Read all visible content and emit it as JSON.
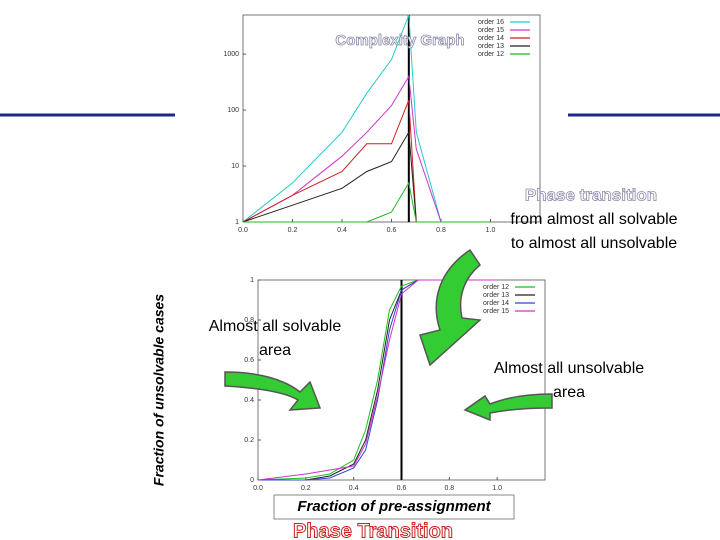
{
  "slide": {
    "transition_title": "Phase transition",
    "transition_detail_1": "from almost all solvable",
    "transition_detail_2": "to almost all unsolvable",
    "solvable_1": "Almost all solvable",
    "solvable_2": "area",
    "unsolvable_1": "Almost all unsolvable",
    "unsolvable_2": "area",
    "footer": "Phase Transition"
  },
  "chart_data": [
    {
      "type": "line",
      "title": "Complexity Graph",
      "log_y": true,
      "x": [
        0,
        0.2,
        0.4,
        0.5,
        0.6,
        0.67,
        0.7,
        0.8,
        1.0
      ],
      "xlim": [
        0,
        1.2
      ],
      "xticks": [
        {
          "value": 0,
          "label": "0.0"
        },
        0.2,
        0.4,
        0.6,
        0.8,
        {
          "value": 1,
          "label": "1.0"
        }
      ],
      "ylim": [
        1,
        5000
      ],
      "yticks": [
        1,
        10,
        100,
        1000
      ],
      "vline": 0.67,
      "legend": "top-right",
      "series": [
        {
          "name": "order 16",
          "color": "#22cccc",
          "values": [
            1,
            5,
            40,
            200,
            800,
            5000,
            40,
            1,
            1
          ]
        },
        {
          "name": "order 15",
          "color": "#cc33cc",
          "values": [
            1,
            3,
            15,
            40,
            120,
            400,
            20,
            1,
            1
          ]
        },
        {
          "name": "order 14",
          "color": "#cc2222",
          "values": [
            1,
            3,
            8,
            25,
            25,
            150,
            1,
            1,
            1
          ]
        },
        {
          "name": "order 13",
          "color": "#222222",
          "values": [
            1,
            2,
            4,
            8,
            12,
            40,
            1,
            1,
            1
          ]
        },
        {
          "name": "order 12",
          "color": "#22bb22",
          "values": [
            1,
            1,
            1,
            1,
            1.5,
            5,
            1,
            1,
            1
          ]
        }
      ]
    },
    {
      "type": "line",
      "x_label": "Fraction of pre-assignment",
      "y_label": "Fraction of unsolvable cases",
      "log_y": false,
      "x": [
        0,
        0.2,
        0.3,
        0.4,
        0.45,
        0.5,
        0.55,
        0.6,
        0.67,
        0.7,
        0.8,
        1.0
      ],
      "xlim": [
        0,
        1.2
      ],
      "xticks": [
        {
          "value": 0,
          "label": "0.0"
        },
        0.2,
        0.4,
        0.6,
        0.8,
        {
          "value": 1,
          "label": "1.0"
        }
      ],
      "ylim": [
        0,
        1
      ],
      "yticks": [
        0,
        0.2,
        0.4,
        0.6,
        0.8,
        1
      ],
      "vline": 0.6,
      "legend": "top-right",
      "series": [
        {
          "name": "order 12",
          "color": "#22bb22",
          "values": [
            0,
            0.01,
            0.03,
            0.1,
            0.25,
            0.5,
            0.85,
            0.97,
            1,
            1,
            1,
            1
          ]
        },
        {
          "name": "order 13",
          "color": "#222222",
          "values": [
            0,
            0,
            0.02,
            0.08,
            0.2,
            0.45,
            0.8,
            0.95,
            1,
            1,
            1,
            1
          ]
        },
        {
          "name": "order 14",
          "color": "#3344cc",
          "values": [
            0,
            0,
            0.01,
            0.06,
            0.15,
            0.4,
            0.75,
            0.95,
            1,
            1,
            1,
            1
          ]
        },
        {
          "name": "order 15",
          "color": "#cc33cc",
          "values": [
            0,
            0.03,
            0.05,
            0.07,
            0.18,
            0.42,
            0.7,
            0.93,
            1,
            1,
            1,
            1
          ]
        }
      ]
    }
  ]
}
